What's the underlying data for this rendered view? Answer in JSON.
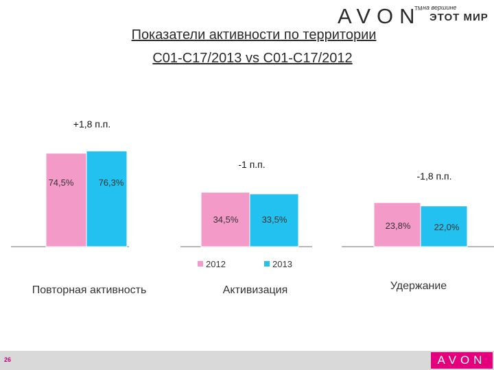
{
  "logo": {
    "brand": "AVON",
    "tm": "TM",
    "tagline_top": "на вершине",
    "tagline_bottom": "ЭТОТ МИР"
  },
  "title": {
    "line1": "Показатели активности  по территории",
    "line2": "C01-C17/2013 vs C01-C17/2012"
  },
  "colors": {
    "series_2012": "#f49ac8",
    "series_2013": "#22c1ef",
    "brand_pink": "#e4007c"
  },
  "chart_data": {
    "type": "bar",
    "categories": [
      "Повторная активность",
      "Активизация",
      "Удержание"
    ],
    "series": [
      {
        "name": "2012",
        "values": [
          74.5,
          34.5,
          23.8
        ],
        "labels": [
          "74,5%",
          "34,5%",
          "23,8%"
        ]
      },
      {
        "name": "2013",
        "values": [
          76.3,
          33.5,
          22.0
        ],
        "labels": [
          "76,3%",
          "33,5%",
          "22,0%"
        ]
      }
    ],
    "annotations": [
      "+1,8 п.п.",
      "-1 п.п.",
      "-1,8 п.п."
    ],
    "legend_position": "bottom-center",
    "grid": false
  },
  "footer": {
    "page_number": "26",
    "logo_text": "AVON"
  }
}
